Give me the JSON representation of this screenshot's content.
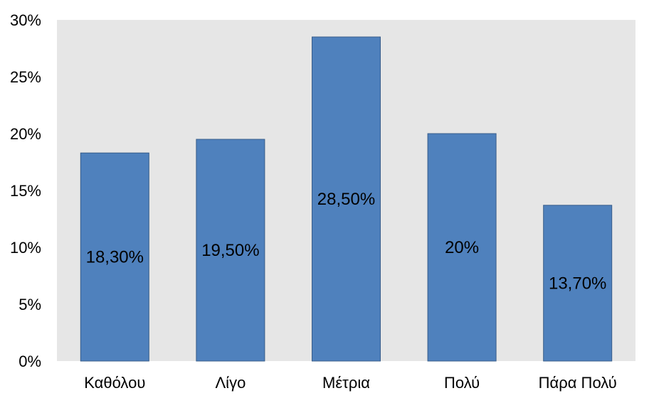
{
  "chart_data": {
    "type": "bar",
    "title": "",
    "xlabel": "",
    "ylabel": "",
    "categories": [
      "Καθόλου",
      "Λίγο",
      "Μέτρια",
      "Πολύ",
      "Πάρα Πολύ"
    ],
    "values": [
      18.3,
      19.5,
      28.5,
      20.0,
      13.7
    ],
    "data_labels": [
      "18,30%",
      "19,50%",
      "28,50%",
      "20%",
      "13,70%"
    ],
    "ylim": [
      0,
      30
    ],
    "y_ticks": [
      0,
      5,
      10,
      15,
      20,
      25,
      30
    ],
    "y_tick_labels": [
      "0%",
      "5%",
      "10%",
      "15%",
      "20%",
      "25%",
      "30%"
    ],
    "grid": false,
    "legend": "none",
    "colors": {
      "bar": "#4F81BD",
      "bar_border": "#385D8A",
      "plot_background": "#E6E6E6",
      "page_background": "#FFFFFF",
      "text": "#000000"
    }
  }
}
